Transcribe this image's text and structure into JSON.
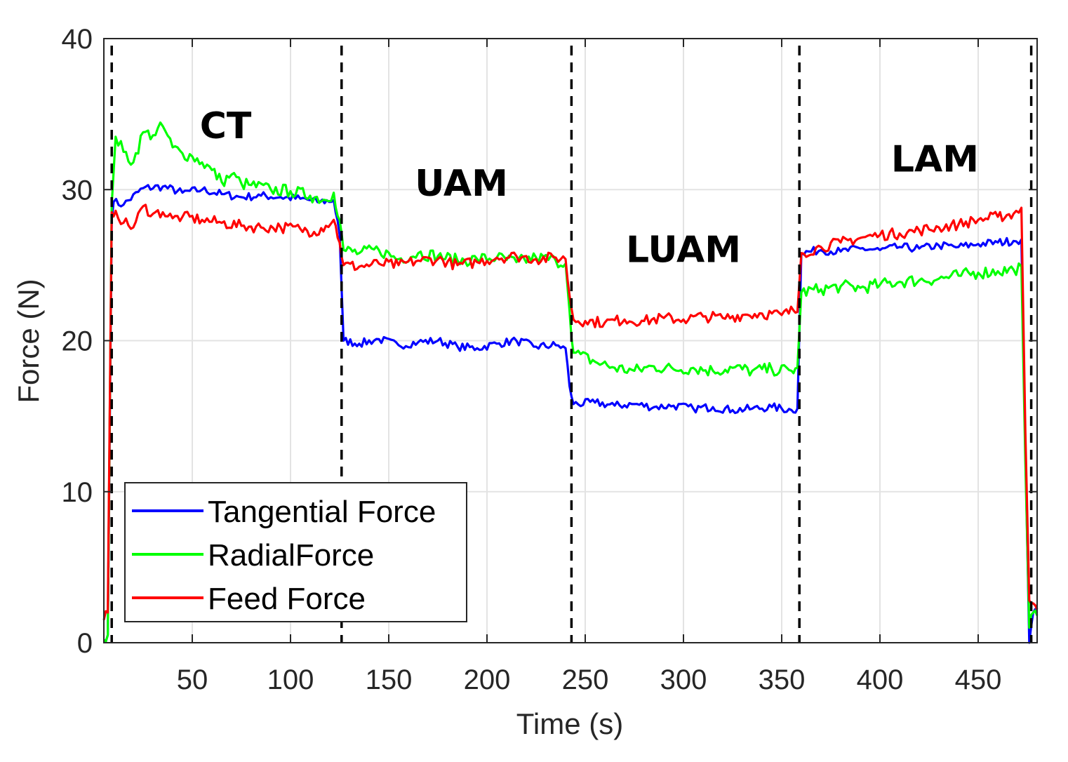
{
  "chart_data": {
    "type": "line",
    "title": "",
    "xlabel": "Time (s)",
    "ylabel": "Force (N)",
    "xlim": [
      5,
      480
    ],
    "ylim": [
      0,
      40
    ],
    "xticks": [
      50,
      100,
      150,
      200,
      250,
      300,
      350,
      400,
      450
    ],
    "yticks": [
      0,
      10,
      20,
      30,
      40
    ],
    "grid": true,
    "legend_position": "bottom-left",
    "phase_boundaries": [
      9,
      126,
      243,
      359,
      477
    ],
    "phases": [
      {
        "label": "CT",
        "x": 67,
        "y": 33.4
      },
      {
        "label": "UAM",
        "x": 187,
        "y": 29.6
      },
      {
        "label": "LUAM",
        "x": 300,
        "y": 25.2
      },
      {
        "label": "LAM",
        "x": 428,
        "y": 31.2
      }
    ],
    "series": [
      {
        "name": "Tangential Force",
        "color": "#0000ff",
        "x": [
          5,
          7,
          9,
          10,
          15,
          25,
          35,
          45,
          55,
          65,
          75,
          85,
          95,
          105,
          115,
          122,
          125,
          127,
          135,
          145,
          155,
          165,
          175,
          185,
          195,
          205,
          215,
          225,
          235,
          240,
          242,
          244,
          255,
          265,
          275,
          285,
          295,
          305,
          315,
          325,
          335,
          345,
          355,
          358,
          360,
          370,
          380,
          390,
          400,
          410,
          420,
          430,
          440,
          450,
          460,
          468,
          472,
          474,
          476,
          478,
          480
        ],
        "y": [
          0.2,
          0.5,
          28,
          29.2,
          29,
          30.1,
          30.2,
          29.8,
          30,
          29.7,
          29.5,
          29.6,
          29.5,
          29.4,
          29.2,
          29.3,
          27,
          20,
          19.8,
          20.1,
          19.7,
          19.9,
          20,
          19.6,
          19.5,
          19.8,
          20,
          19.6,
          19.7,
          19.5,
          17,
          15.8,
          15.9,
          15.7,
          15.8,
          15.6,
          15.7,
          15.5,
          15.6,
          15.4,
          15.5,
          15.6,
          15.4,
          15.5,
          25.8,
          26,
          25.9,
          26.1,
          26,
          26.2,
          26.1,
          26.3,
          26.2,
          26.4,
          26.5,
          26.6,
          26.7,
          13,
          0,
          2,
          2
        ]
      },
      {
        "name": "RadialForce",
        "color": "#00ff00",
        "x": [
          5,
          7,
          9,
          11,
          15,
          20,
          25,
          30,
          35,
          40,
          45,
          50,
          55,
          60,
          65,
          70,
          75,
          80,
          90,
          100,
          110,
          118,
          122,
          125,
          127,
          135,
          145,
          155,
          165,
          175,
          185,
          195,
          205,
          215,
          225,
          235,
          240,
          242,
          244,
          255,
          265,
          275,
          285,
          295,
          305,
          315,
          325,
          335,
          345,
          355,
          358,
          360,
          370,
          380,
          390,
          400,
          410,
          420,
          430,
          440,
          450,
          460,
          468,
          472,
          474,
          476,
          478,
          480
        ],
        "y": [
          0.2,
          0.5,
          29,
          33.5,
          32.5,
          31.8,
          33.8,
          33.6,
          34.2,
          32.8,
          32.4,
          32.2,
          31.8,
          31.3,
          30.5,
          31,
          30.4,
          30.3,
          30,
          29.9,
          29.6,
          29.3,
          29.8,
          28,
          26,
          25.8,
          26,
          25.4,
          25.8,
          25.6,
          25.3,
          25.4,
          25.5,
          25.2,
          25.5,
          25.3,
          25.1,
          22,
          19.2,
          18.6,
          18.2,
          18,
          18.3,
          18.1,
          18.2,
          18,
          18.2,
          18,
          18.1,
          18,
          18.2,
          23.2,
          23.4,
          23.6,
          23.5,
          23.7,
          23.9,
          24,
          24.1,
          24.3,
          24.5,
          24.6,
          24.7,
          24.9,
          12,
          1,
          2,
          1.8
        ]
      },
      {
        "name": "Feed Force",
        "color": "#ff0000",
        "x": [
          5,
          7,
          9,
          11,
          15,
          20,
          25,
          30,
          35,
          40,
          45,
          55,
          65,
          75,
          85,
          95,
          105,
          112,
          118,
          122,
          125,
          127,
          135,
          145,
          155,
          165,
          175,
          185,
          195,
          205,
          215,
          225,
          235,
          240,
          242,
          244,
          250,
          260,
          270,
          280,
          290,
          300,
          310,
          320,
          330,
          340,
          350,
          356,
          358,
          360,
          370,
          380,
          390,
          400,
          410,
          420,
          430,
          440,
          450,
          460,
          468,
          472,
          474,
          476,
          478,
          480
        ],
        "y": [
          1.5,
          2,
          28.5,
          28.6,
          27.8,
          27.5,
          28.9,
          28.4,
          28.5,
          28.1,
          28.2,
          28,
          27.8,
          27.6,
          27.5,
          27.5,
          27.4,
          27.2,
          27.6,
          28,
          26.5,
          25,
          24.9,
          25.1,
          25,
          25.3,
          25.4,
          25,
          25.2,
          25.5,
          25.6,
          25.4,
          25.5,
          25.4,
          23,
          21.4,
          21.3,
          21.2,
          21.4,
          21.3,
          21.5,
          21.4,
          21.6,
          21.5,
          21.7,
          21.8,
          21.7,
          22,
          21.9,
          25.8,
          26.2,
          26.5,
          26.8,
          27,
          27.1,
          27.3,
          27.5,
          27.7,
          28,
          28.2,
          28.4,
          28.8,
          14,
          2.8,
          2.6,
          2.2
        ]
      }
    ]
  }
}
